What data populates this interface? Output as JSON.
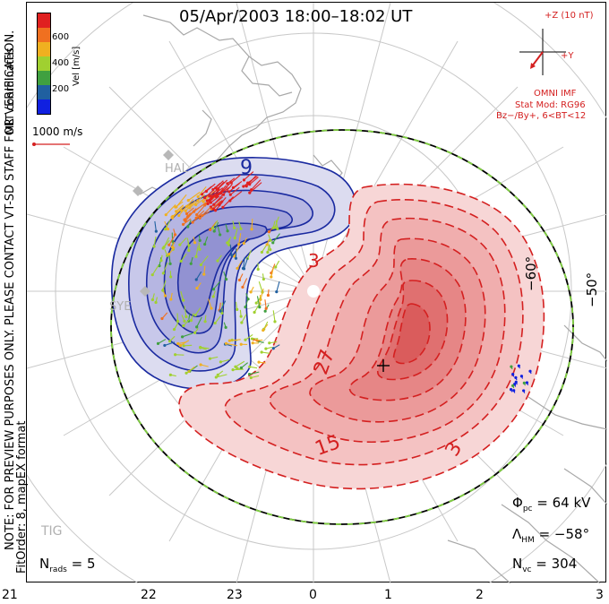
{
  "title": "05/Apr/2003 18:00–18:02 UT",
  "left_notes": {
    "mlt": "MLT coordinates",
    "note": "NOTE: FOR PREVIEW PURPOSES ONLY. PLEASE CONTACT VT-SD STAFF FOR VERIFICATION.",
    "fit": "FitOrder: 8, mapEX format"
  },
  "colorbar": {
    "label": "Vel [m/s]",
    "ticks": [
      "600",
      "400",
      "200"
    ],
    "colors": [
      "#e02020",
      "#f07020",
      "#f0b020",
      "#a0d030",
      "#40a040",
      "#2060a0",
      "#1020e0"
    ]
  },
  "reference_vector": {
    "label": "1000 m/s"
  },
  "imf": {
    "z_label": "+Z (10 nT)",
    "y_label": "+Y",
    "source": "OMNI IMF",
    "model_1": "Stat Mod: RG96",
    "model_2": "Bz−/By+, 6<BT<12"
  },
  "latitude_labels": [
    "−60°",
    "−50°"
  ],
  "contour_labels": [
    "9",
    "3",
    "27",
    "15",
    "3"
  ],
  "stations": [
    "HAL",
    "SYE",
    "TIG"
  ],
  "stats": {
    "phi_label": "Φ",
    "phi_sub": "pc",
    "phi_value": "= 64 kV",
    "lambda_label": "Λ",
    "lambda_sub": "HM",
    "lambda_value": "= −58°",
    "nvc_label": "N",
    "nvc_sub": "vc",
    "nvc_value": "= 304",
    "nrads_label": "N",
    "nrads_sub": "rads",
    "nrads_value": "= 5"
  },
  "x_axis": {
    "ticks": [
      "21",
      "22",
      "23",
      "0",
      "1",
      "2",
      "3"
    ]
  },
  "colors": {
    "positive": "#d42020",
    "negative": "#1a2aa0",
    "hmb": "#80d040"
  }
}
